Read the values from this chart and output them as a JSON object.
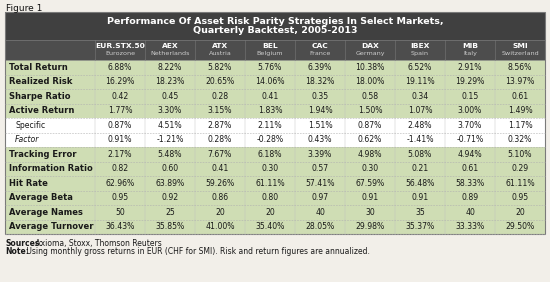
{
  "figure_label": "Figure 1",
  "title_line1": "Performance Of Asset Risk Parity Strategies In Select Markets,",
  "title_line2": "Quarterly Backtest, 2005-2013",
  "col_headers": [
    [
      "EUR.STX.50",
      "Eurozone"
    ],
    [
      "AEX",
      "Netherlands"
    ],
    [
      "ATX",
      "Austria"
    ],
    [
      "BEL",
      "Belgium"
    ],
    [
      "CAC",
      "France"
    ],
    [
      "DAX",
      "Germany"
    ],
    [
      "IBEX",
      "Spain"
    ],
    [
      "MIB",
      "Italy"
    ],
    [
      "SMI",
      "Switzerland"
    ]
  ],
  "rows": [
    {
      "label": "Total Return",
      "bold": true,
      "italic": false,
      "indent": false,
      "values": [
        "6.88%",
        "8.22%",
        "5.82%",
        "5.76%",
        "6.39%",
        "10.38%",
        "6.52%",
        "2.91%",
        "8.56%"
      ]
    },
    {
      "label": "Realized Risk",
      "bold": true,
      "italic": false,
      "indent": false,
      "values": [
        "16.29%",
        "18.23%",
        "20.65%",
        "14.06%",
        "18.32%",
        "18.00%",
        "19.11%",
        "19.29%",
        "13.97%"
      ]
    },
    {
      "label": "Sharpe Ratio",
      "bold": true,
      "italic": false,
      "indent": false,
      "values": [
        "0.42",
        "0.45",
        "0.28",
        "0.41",
        "0.35",
        "0.58",
        "0.34",
        "0.15",
        "0.61"
      ]
    },
    {
      "label": "Active Return",
      "bold": true,
      "italic": false,
      "indent": false,
      "values": [
        "1.77%",
        "3.30%",
        "3.15%",
        "1.83%",
        "1.94%",
        "1.50%",
        "1.07%",
        "3.00%",
        "1.49%"
      ]
    },
    {
      "label": "Specific",
      "bold": false,
      "italic": false,
      "indent": true,
      "values": [
        "0.87%",
        "4.51%",
        "2.87%",
        "2.11%",
        "1.51%",
        "0.87%",
        "2.48%",
        "3.70%",
        "1.17%"
      ]
    },
    {
      "label": "Factor",
      "bold": false,
      "italic": true,
      "indent": true,
      "values": [
        "0.91%",
        "-1.21%",
        "0.28%",
        "-0.28%",
        "0.43%",
        "0.62%",
        "-1.41%",
        "-0.71%",
        "0.32%"
      ]
    },
    {
      "label": "Tracking Error",
      "bold": true,
      "italic": false,
      "indent": false,
      "values": [
        "2.17%",
        "5.48%",
        "7.67%",
        "6.18%",
        "3.39%",
        "4.98%",
        "5.08%",
        "4.94%",
        "5.10%"
      ]
    },
    {
      "label": "Information Ratio",
      "bold": true,
      "italic": false,
      "indent": false,
      "values": [
        "0.82",
        "0.60",
        "0.41",
        "0.30",
        "0.57",
        "0.30",
        "0.21",
        "0.61",
        "0.29"
      ]
    },
    {
      "label": "Hit Rate",
      "bold": true,
      "italic": false,
      "indent": false,
      "values": [
        "62.96%",
        "63.89%",
        "59.26%",
        "61.11%",
        "57.41%",
        "67.59%",
        "56.48%",
        "58.33%",
        "61.11%"
      ]
    },
    {
      "label": "Average Beta",
      "bold": true,
      "italic": false,
      "indent": false,
      "values": [
        "0.95",
        "0.92",
        "0.86",
        "0.80",
        "0.97",
        "0.91",
        "0.91",
        "0.89",
        "0.95"
      ]
    },
    {
      "label": "Average Names",
      "bold": true,
      "italic": false,
      "indent": false,
      "values": [
        "50",
        "25",
        "20",
        "20",
        "40",
        "30",
        "35",
        "40",
        "20"
      ]
    },
    {
      "label": "Average Turnover",
      "bold": true,
      "italic": false,
      "indent": false,
      "values": [
        "36.43%",
        "35.85%",
        "41.00%",
        "35.40%",
        "28.05%",
        "29.98%",
        "35.37%",
        "33.33%",
        "29.50%"
      ]
    }
  ],
  "sources_bold": "Sources:",
  "sources_rest": " Axioma, Stoxx, Thomson Reuters",
  "note_bold": "Note:",
  "note_rest": " Using monthly gross returns in EUR (CHF for SMI). Risk and return figures are annualized.",
  "bg_color": "#f2efe9",
  "title_bg": "#404040",
  "col_hdr_bg": "#4d4d4d",
  "row_bold_bg": "#cfddb4",
  "row_normal_bg": "#ffffff",
  "border_outer": "#7a7a7a",
  "border_inner": "#b0b0b0",
  "text_dark": "#1a1a1a",
  "text_white": "#ffffff",
  "text_subhdr": "#cccccc"
}
